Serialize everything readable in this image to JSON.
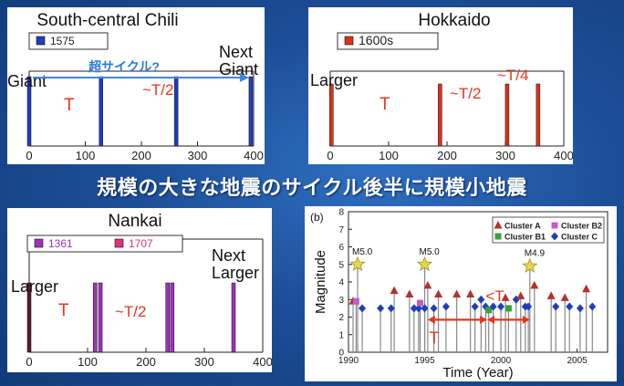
{
  "banner": "規模の大きな地震のサイクル後半に規模小地震",
  "chart_data": [
    {
      "type": "bar",
      "title": "South-central Chili",
      "legend": [
        "1575"
      ],
      "color": "#1f3fb8",
      "xlim": [
        0,
        400
      ],
      "xticks": [
        0,
        100,
        200,
        300,
        400
      ],
      "events": [
        0,
        128,
        262,
        395
      ],
      "annotations": {
        "left": "Giant",
        "right": "Next\nGiant",
        "period": "T",
        "half": "~T/2",
        "arrow": "超サイクル?"
      }
    },
    {
      "type": "bar",
      "title": "Hokkaido",
      "legend": [
        "1600s"
      ],
      "color": "#d8321c",
      "xlim": [
        0,
        400
      ],
      "xticks": [
        0,
        100,
        200,
        300,
        400
      ],
      "events": [
        2,
        188,
        303,
        356
      ],
      "annotations": {
        "left": "Larger",
        "period": "T",
        "half": "~T/2",
        "quarter": "~T/4"
      }
    },
    {
      "type": "bar",
      "title": "Nankai",
      "legend": [
        "1361",
        "1707"
      ],
      "colors": [
        "#9a34b8",
        "#e0307a"
      ],
      "xlim": [
        0,
        400
      ],
      "xticks": [
        0,
        100,
        200,
        300,
        400
      ],
      "events": [
        0,
        113,
        122,
        237,
        245,
        350
      ],
      "annotations": {
        "left": "Larger",
        "right": "Next\nLarger",
        "period": "T",
        "half": "~T/2"
      }
    },
    {
      "type": "scatter",
      "panel_label": "(b)",
      "xlabel": "Time (Year)",
      "ylabel": "Magnitude",
      "xlim": [
        1990,
        2007
      ],
      "ylim": [
        0,
        8
      ],
      "xticks": [
        1990,
        1995,
        2000,
        2005
      ],
      "yticks": [
        0,
        1,
        2,
        3,
        4,
        5,
        6,
        7,
        8
      ],
      "legend": [
        {
          "name": "Cluster A",
          "color": "#b3322c",
          "marker": "triangle"
        },
        {
          "name": "Cluster B2",
          "color": "#c45bd0",
          "marker": "square"
        },
        {
          "name": "Cluster B1",
          "color": "#3aa13a",
          "marker": "square"
        },
        {
          "name": "Cluster C",
          "color": "#1f3fb8",
          "marker": "diamond"
        }
      ],
      "stars": [
        {
          "x": 1990.6,
          "y": 5.0,
          "label": "M5.0"
        },
        {
          "x": 1995.0,
          "y": 5.0,
          "label": "M5.0"
        },
        {
          "x": 2001.9,
          "y": 4.9,
          "label": "M4.9"
        }
      ],
      "points": [
        {
          "x": 1990.3,
          "y": 2.9,
          "c": "A"
        },
        {
          "x": 1990.5,
          "y": 2.9,
          "c": "B2"
        },
        {
          "x": 1990.9,
          "y": 2.5,
          "c": "C"
        },
        {
          "x": 1992.1,
          "y": 2.5,
          "c": "C"
        },
        {
          "x": 1992.8,
          "y": 2.5,
          "c": "C"
        },
        {
          "x": 1993.0,
          "y": 3.5,
          "c": "A"
        },
        {
          "x": 1994.0,
          "y": 3.3,
          "c": "A"
        },
        {
          "x": 1994.3,
          "y": 2.5,
          "c": "C"
        },
        {
          "x": 1994.6,
          "y": 2.5,
          "c": "C"
        },
        {
          "x": 1994.7,
          "y": 2.8,
          "c": "B2"
        },
        {
          "x": 1995.0,
          "y": 2.5,
          "c": "C"
        },
        {
          "x": 1995.2,
          "y": 3.8,
          "c": "A"
        },
        {
          "x": 1995.6,
          "y": 2.5,
          "c": "C"
        },
        {
          "x": 1995.9,
          "y": 3.3,
          "c": "A"
        },
        {
          "x": 1996.4,
          "y": 2.6,
          "c": "C"
        },
        {
          "x": 1997.1,
          "y": 3.3,
          "c": "A"
        },
        {
          "x": 1998.0,
          "y": 3.3,
          "c": "A"
        },
        {
          "x": 1998.3,
          "y": 2.6,
          "c": "C"
        },
        {
          "x": 1998.7,
          "y": 3.0,
          "c": "C"
        },
        {
          "x": 1999.0,
          "y": 2.6,
          "c": "C"
        },
        {
          "x": 1999.2,
          "y": 2.4,
          "c": "B1"
        },
        {
          "x": 1999.5,
          "y": 2.6,
          "c": "C"
        },
        {
          "x": 2000.0,
          "y": 2.6,
          "c": "C"
        },
        {
          "x": 2000.3,
          "y": 3.1,
          "c": "A"
        },
        {
          "x": 2000.5,
          "y": 2.5,
          "c": "B1"
        },
        {
          "x": 2001.0,
          "y": 3.0,
          "c": "C"
        },
        {
          "x": 2001.3,
          "y": 3.2,
          "c": "A"
        },
        {
          "x": 2001.6,
          "y": 2.6,
          "c": "C"
        },
        {
          "x": 2001.8,
          "y": 2.6,
          "c": "C"
        },
        {
          "x": 2002.2,
          "y": 3.8,
          "c": "A"
        },
        {
          "x": 2003.3,
          "y": 3.2,
          "c": "A"
        },
        {
          "x": 2003.6,
          "y": 2.6,
          "c": "C"
        },
        {
          "x": 2004.2,
          "y": 3.1,
          "c": "A"
        },
        {
          "x": 2004.5,
          "y": 2.6,
          "c": "C"
        },
        {
          "x": 2005.2,
          "y": 2.5,
          "c": "C"
        },
        {
          "x": 2005.6,
          "y": 3.6,
          "c": "A"
        },
        {
          "x": 2006.0,
          "y": 2.6,
          "c": "C"
        }
      ],
      "annotations": {
        "T": "T",
        "lessT": "<T"
      },
      "arrows": [
        [
          1995.2,
          1999.1
        ],
        [
          1999.1,
          2001.9
        ]
      ]
    }
  ]
}
